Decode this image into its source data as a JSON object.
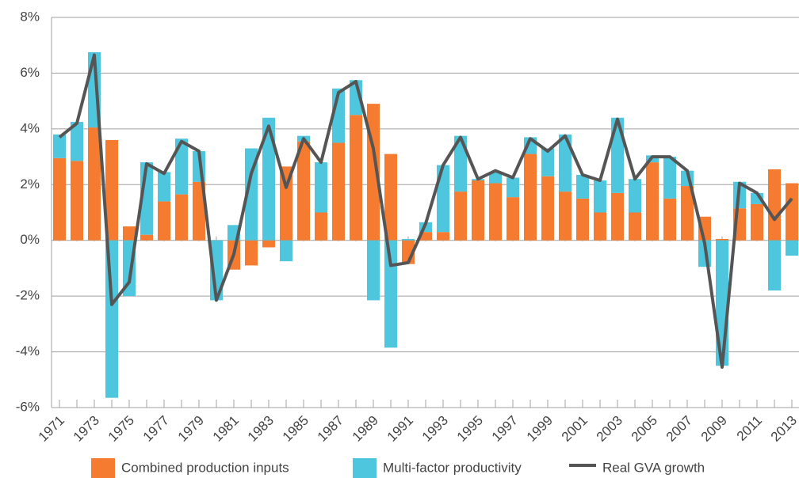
{
  "chart_data": {
    "type": "bar",
    "categories": [
      "1971",
      null,
      "1973",
      null,
      "1975",
      null,
      "1977",
      null,
      "1979",
      null,
      "1981",
      null,
      "1983",
      null,
      "1985",
      null,
      "1987",
      null,
      "1989",
      null,
      "1991",
      null,
      "1993",
      null,
      "1995",
      null,
      "1997",
      null,
      "1999",
      null,
      "2001",
      null,
      "2003",
      null,
      "2005",
      null,
      "2007",
      null,
      "2009",
      null,
      "2011",
      null,
      "2013"
    ],
    "series": [
      {
        "name": "Combined production inputs",
        "type": "bar",
        "color": "#f47b30",
        "values": [
          2.95,
          2.85,
          4.05,
          3.6,
          0.5,
          0.2,
          1.4,
          1.65,
          2.1,
          0,
          -1.05,
          -0.9,
          -0.25,
          2.65,
          3.55,
          1.0,
          3.5,
          4.5,
          4.9,
          3.1,
          -0.85,
          0.3,
          0.3,
          1.75,
          2.15,
          2.05,
          1.55,
          3.1,
          2.3,
          1.75,
          1.5,
          1.0,
          1.7,
          1.0,
          2.8,
          1.5,
          1.95,
          0.85,
          0.05,
          1.15,
          1.3,
          2.55,
          2.05
        ]
      },
      {
        "name": "Multi-factor productivity",
        "type": "bar",
        "color": "#4ec6de",
        "values": [
          0.85,
          1.4,
          2.7,
          -5.65,
          -2.0,
          2.6,
          1.05,
          2.0,
          1.1,
          -2.15,
          0.55,
          3.3,
          4.4,
          -0.75,
          0.2,
          1.8,
          1.95,
          1.25,
          -2.15,
          -3.85,
          0.05,
          0.35,
          2.4,
          2.0,
          0.05,
          0.4,
          0.7,
          0.6,
          1.0,
          2.05,
          0.85,
          1.15,
          2.7,
          1.2,
          0.25,
          1.5,
          0.55,
          -0.95,
          -4.5,
          0.95,
          0.4,
          -1.8,
          -0.55
        ]
      },
      {
        "name": "Real GVA growth",
        "type": "line",
        "color": "#555555",
        "values": [
          3.7,
          4.2,
          6.65,
          -2.3,
          -1.5,
          2.75,
          2.4,
          3.55,
          3.2,
          -2.15,
          -0.5,
          2.4,
          4.1,
          1.9,
          3.65,
          2.8,
          5.3,
          5.7,
          3.3,
          -0.9,
          -0.8,
          0.6,
          2.7,
          3.7,
          2.2,
          2.5,
          2.25,
          3.65,
          3.2,
          3.75,
          2.35,
          2.15,
          4.35,
          2.2,
          3.0,
          3.0,
          2.5,
          -0.1,
          -4.55,
          2.05,
          1.7,
          0.75,
          1.5
        ]
      }
    ],
    "ylim": [
      -6,
      8
    ],
    "yticks": [
      {
        "value": -6,
        "label": "-6%"
      },
      {
        "value": -4,
        "label": "-4%"
      },
      {
        "value": -2,
        "label": "-2%"
      },
      {
        "value": 0,
        "label": "0%"
      },
      {
        "value": 2,
        "label": "2%"
      },
      {
        "value": 4,
        "label": "4%"
      },
      {
        "value": 6,
        "label": "6%"
      },
      {
        "value": 8,
        "label": "8%"
      }
    ],
    "grid": true,
    "legend": "bottom"
  }
}
